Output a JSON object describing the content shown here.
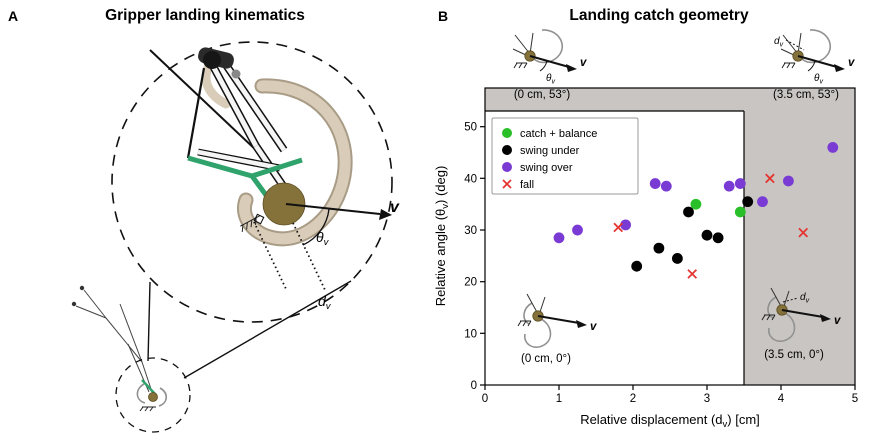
{
  "symbols": {
    "v": "v",
    "theta": "θ",
    "d": "d",
    "sub": "v"
  },
  "panelA": {
    "letter": "A",
    "title": "Gripper landing kinematics"
  },
  "panelB": {
    "letter": "B",
    "title": "Landing catch geometry"
  },
  "chart_data": {
    "type": "scatter",
    "title": "Landing catch geometry",
    "xlabel_pre": "Relative displacement (d",
    "xlabel_sub": "v",
    "xlabel_post": ") [cm]",
    "ylabel_pre": "Relative angle (θ",
    "ylabel_sub": "v",
    "ylabel_post": ") (deg)",
    "xlim": [
      0,
      5
    ],
    "ylim": [
      0,
      57.5
    ],
    "xticks": [
      "0",
      "1",
      "2",
      "3",
      "4",
      "5"
    ],
    "yticks": [
      "0",
      "10",
      "20",
      "30",
      "40",
      "50"
    ],
    "grid": false,
    "legend_position": "upper-left",
    "shaded_color": "#c8c5c2",
    "catch_region": {
      "x_range_cm": [
        0,
        3.5
      ],
      "theta_range_deg": [
        0,
        53
      ]
    },
    "series": [
      {
        "name": "catch + balance",
        "marker": "circle",
        "color": "#29bf29",
        "points": [
          [
            2.85,
            35
          ],
          [
            3.45,
            33.5
          ]
        ]
      },
      {
        "name": "swing under",
        "marker": "circle",
        "color": "#000000",
        "points": [
          [
            2.05,
            23
          ],
          [
            2.35,
            26.5
          ],
          [
            2.6,
            24.5
          ],
          [
            2.75,
            33.5
          ],
          [
            3.0,
            29
          ],
          [
            3.15,
            28.5
          ],
          [
            3.55,
            35.5
          ]
        ]
      },
      {
        "name": "swing over",
        "marker": "circle",
        "color": "#7a3bd4",
        "points": [
          [
            1.0,
            28.5
          ],
          [
            1.25,
            30
          ],
          [
            1.9,
            31
          ],
          [
            2.3,
            39
          ],
          [
            2.45,
            38.5
          ],
          [
            3.3,
            38.5
          ],
          [
            3.45,
            39
          ],
          [
            3.75,
            35.5
          ],
          [
            4.1,
            39.5
          ],
          [
            4.7,
            46
          ]
        ]
      },
      {
        "name": "fall",
        "marker": "x",
        "color": "#e53531",
        "points": [
          [
            1.8,
            30.5
          ],
          [
            2.8,
            21.5
          ],
          [
            3.85,
            40
          ],
          [
            4.3,
            29.5
          ]
        ]
      }
    ],
    "insets": [
      {
        "label": "(0 cm, 53°)",
        "position": "top-left"
      },
      {
        "label": "(3.5 cm, 53°)",
        "position": "top-right"
      },
      {
        "label": "(0 cm, 0°)",
        "position": "bottom-left"
      },
      {
        "label": "(3.5 cm, 0°)",
        "position": "bottom-right"
      }
    ]
  }
}
